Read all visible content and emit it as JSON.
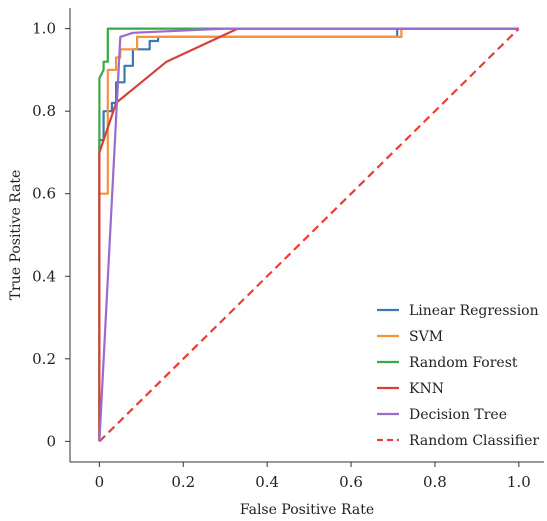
{
  "chart_data": {
    "type": "line",
    "title": "",
    "xlabel": "False Positive Rate",
    "ylabel": "True Positive Rate",
    "xlim": [
      -0.07,
      1.06
    ],
    "ylim": [
      -0.05,
      1.05
    ],
    "x_ticks": [
      0,
      0.2,
      0.4,
      0.6,
      0.8,
      1.0
    ],
    "x_tick_labels": [
      "0",
      "0.2",
      "0.4",
      "0.6",
      "0.8",
      "1.0"
    ],
    "y_ticks": [
      0,
      0.2,
      0.4,
      0.6,
      0.8,
      1.0
    ],
    "y_tick_labels": [
      "0",
      "0.2",
      "0.4",
      "0.6",
      "0.8",
      "1.0"
    ],
    "grid": false,
    "legend_position": "bottom-right",
    "series": [
      {
        "name": "Linear Regression",
        "color": "#3a78b0",
        "dash": "solid",
        "points": [
          [
            0,
            0
          ],
          [
            0,
            0.73
          ],
          [
            0.01,
            0.73
          ],
          [
            0.01,
            0.8
          ],
          [
            0.03,
            0.8
          ],
          [
            0.03,
            0.82
          ],
          [
            0.04,
            0.82
          ],
          [
            0.04,
            0.87
          ],
          [
            0.06,
            0.87
          ],
          [
            0.06,
            0.91
          ],
          [
            0.08,
            0.91
          ],
          [
            0.08,
            0.95
          ],
          [
            0.12,
            0.95
          ],
          [
            0.12,
            0.97
          ],
          [
            0.14,
            0.97
          ],
          [
            0.14,
            0.98
          ],
          [
            0.71,
            0.98
          ],
          [
            0.71,
            1.0
          ],
          [
            1.0,
            1.0
          ]
        ]
      },
      {
        "name": "SVM",
        "color": "#f5923c",
        "dash": "solid",
        "points": [
          [
            0,
            0
          ],
          [
            0,
            0.6
          ],
          [
            0.02,
            0.6
          ],
          [
            0.02,
            0.9
          ],
          [
            0.04,
            0.9
          ],
          [
            0.04,
            0.93
          ],
          [
            0.05,
            0.93
          ],
          [
            0.05,
            0.95
          ],
          [
            0.09,
            0.95
          ],
          [
            0.09,
            0.98
          ],
          [
            0.72,
            0.98
          ],
          [
            0.72,
            1.0
          ],
          [
            1.0,
            1.0
          ]
        ]
      },
      {
        "name": "Random Forest",
        "color": "#3aa844",
        "dash": "solid",
        "points": [
          [
            0,
            0
          ],
          [
            0,
            0.88
          ],
          [
            0.01,
            0.9
          ],
          [
            0.01,
            0.92
          ],
          [
            0.02,
            0.92
          ],
          [
            0.02,
            1.0
          ],
          [
            1.0,
            1.0
          ]
        ]
      },
      {
        "name": "KNN",
        "color": "#d6403a",
        "dash": "solid",
        "points": [
          [
            0,
            0
          ],
          [
            0,
            0.7
          ],
          [
            0.02,
            0.76
          ],
          [
            0.04,
            0.82
          ],
          [
            0.16,
            0.92
          ],
          [
            0.33,
            1.0
          ],
          [
            1.0,
            1.0
          ]
        ]
      },
      {
        "name": "Decision Tree",
        "color": "#9a6ad0",
        "dash": "solid",
        "points": [
          [
            0,
            0
          ],
          [
            0.05,
            0.98
          ],
          [
            0.08,
            0.99
          ],
          [
            0.3,
            1.0
          ],
          [
            1.0,
            1.0
          ]
        ]
      },
      {
        "name": "Random Classifier",
        "color": "#ee3b34",
        "dash": "dashed",
        "points": [
          [
            0,
            0
          ],
          [
            1.0,
            1.0
          ]
        ]
      }
    ]
  }
}
